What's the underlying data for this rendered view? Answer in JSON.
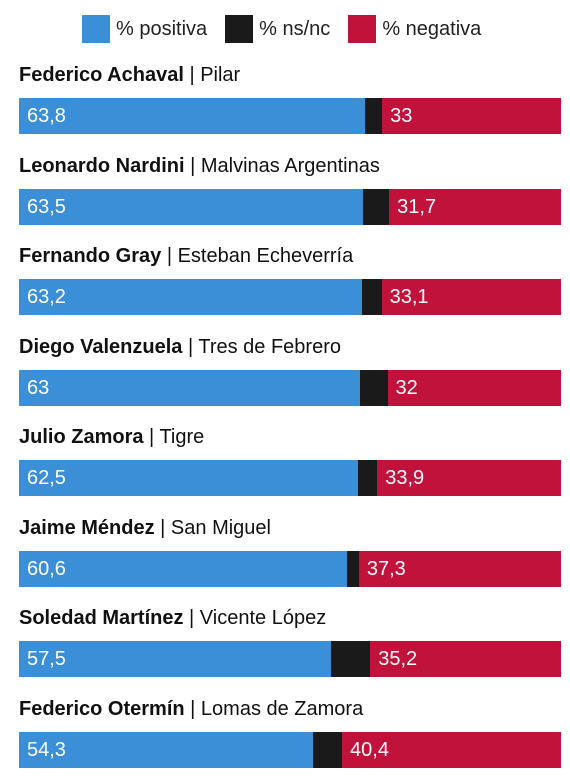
{
  "colors": {
    "positiva": "#3a8fd6",
    "nsnc": "#1a1a1a",
    "negativa": "#c0123a"
  },
  "chart_data": {
    "type": "bar",
    "orientation": "horizontal",
    "stacked": true,
    "legend_position": "top",
    "series": [
      {
        "name": "% positiva",
        "color": "#3a8fd6"
      },
      {
        "name": "% ns/nc",
        "color": "#1a1a1a"
      },
      {
        "name": "% negativa",
        "color": "#c0123a"
      }
    ],
    "rows": [
      {
        "name": "Federico Achaval",
        "place": "Pilar",
        "positiva": 63.8,
        "positiva_label": "63,8",
        "nsnc": 3.2,
        "negativa": 33,
        "negativa_label": "33"
      },
      {
        "name": "Leonardo Nardini",
        "place": "Malvinas Argentinas",
        "positiva": 63.5,
        "positiva_label": "63,5",
        "nsnc": 4.8,
        "negativa": 31.7,
        "negativa_label": "31,7"
      },
      {
        "name": "Fernando Gray",
        "place": "Esteban Echeverría",
        "positiva": 63.2,
        "positiva_label": "63,2",
        "nsnc": 3.7,
        "negativa": 33.1,
        "negativa_label": "33,1"
      },
      {
        "name": "Diego Valenzuela",
        "place": "Tres de Febrero",
        "positiva": 63,
        "positiva_label": "63",
        "nsnc": 5,
        "negativa": 32,
        "negativa_label": "32"
      },
      {
        "name": "Julio Zamora",
        "place": "Tigre",
        "positiva": 62.5,
        "positiva_label": "62,5",
        "nsnc": 3.6,
        "negativa": 33.9,
        "negativa_label": "33,9"
      },
      {
        "name": "Jaime Méndez",
        "place": "San Miguel",
        "positiva": 60.6,
        "positiva_label": "60,6",
        "nsnc": 2.1,
        "negativa": 37.3,
        "negativa_label": "37,3"
      },
      {
        "name": "Soledad Martínez",
        "place": "Vicente López",
        "positiva": 57.5,
        "positiva_label": "57,5",
        "nsnc": 7.3,
        "negativa": 35.2,
        "negativa_label": "35,2"
      },
      {
        "name": "Federico Otermín",
        "place": "Lomas de Zamora",
        "positiva": 54.3,
        "positiva_label": "54,3",
        "nsnc": 5.3,
        "negativa": 40.4,
        "negativa_label": "40,4"
      }
    ],
    "title": "",
    "xlabel": "",
    "ylabel": "",
    "xlim": [
      0,
      100
    ]
  }
}
